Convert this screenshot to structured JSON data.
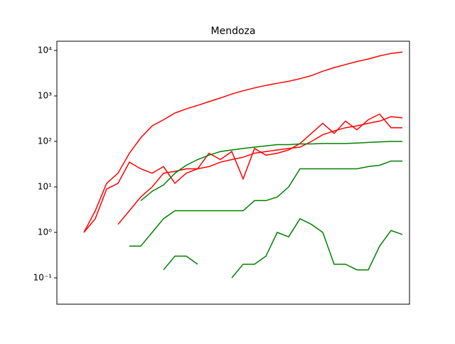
{
  "chart_data": {
    "type": "line",
    "title": "Mendoza",
    "log_y": true,
    "x": [
      0,
      4,
      8,
      12,
      16,
      20,
      24,
      28,
      32,
      36,
      40,
      44,
      48,
      52,
      56,
      60,
      64,
      68,
      72,
      76,
      80,
      84,
      88,
      92,
      96,
      100,
      104,
      108,
      112,
      116
    ],
    "xlim": [
      -5.5,
      118.5
    ],
    "ylim": [
      0.0264,
      15960
    ],
    "yticks": [
      {
        "value": 0.1,
        "label": "10⁻¹"
      },
      {
        "value": 1,
        "label": "10⁰"
      },
      {
        "value": 10,
        "label": "10¹"
      },
      {
        "value": 100,
        "label": "10²"
      },
      {
        "value": 1000,
        "label": "10³"
      },
      {
        "value": 10000,
        "label": "10⁴"
      }
    ],
    "series": [
      {
        "color": "red",
        "values": [
          null,
          1,
          3,
          12,
          20,
          55,
          120,
          220,
          300,
          420,
          520,
          620,
          750,
          900,
          1100,
          1300,
          1500,
          1700,
          1900,
          2100,
          2400,
          2800,
          3500,
          4200,
          4900,
          5700,
          6500,
          7600,
          8600,
          9200
        ]
      },
      {
        "color": "red",
        "values": [
          null,
          1,
          2,
          9,
          12,
          35,
          25,
          20,
          28,
          12,
          20,
          25,
          55,
          40,
          60,
          15,
          70,
          50,
          55,
          65,
          90,
          150,
          250,
          150,
          280,
          180,
          300,
          400,
          200,
          200
        ]
      },
      {
        "color": "red",
        "values": [
          null,
          null,
          null,
          null,
          1.5,
          3,
          6,
          10,
          20,
          22,
          25,
          25,
          28,
          35,
          40,
          45,
          55,
          60,
          65,
          70,
          75,
          100,
          140,
          170,
          200,
          220,
          250,
          280,
          350,
          330
        ]
      },
      {
        "color": "green",
        "values": [
          null,
          null,
          null,
          null,
          null,
          null,
          5,
          8,
          11,
          20,
          30,
          40,
          50,
          60,
          65,
          70,
          75,
          80,
          85,
          85,
          88,
          88,
          90,
          90,
          90,
          92,
          95,
          98,
          100,
          100
        ]
      },
      {
        "color": "green",
        "values": [
          null,
          null,
          null,
          null,
          null,
          0.5,
          0.5,
          1,
          2,
          3,
          3,
          3,
          3,
          3,
          3,
          3,
          5,
          5,
          6,
          10,
          25,
          25,
          25,
          25,
          25,
          25,
          28,
          30,
          37,
          37
        ]
      },
      {
        "color": "green",
        "values": [
          null,
          null,
          null,
          null,
          null,
          null,
          null,
          null,
          0.15,
          0.3,
          0.3,
          0.2,
          null,
          null,
          0.1,
          0.2,
          0.2,
          0.3,
          1,
          0.8,
          2,
          1.5,
          1,
          0.2,
          0.2,
          0.15,
          0.15,
          0.5,
          1.1,
          0.9
        ]
      }
    ]
  }
}
